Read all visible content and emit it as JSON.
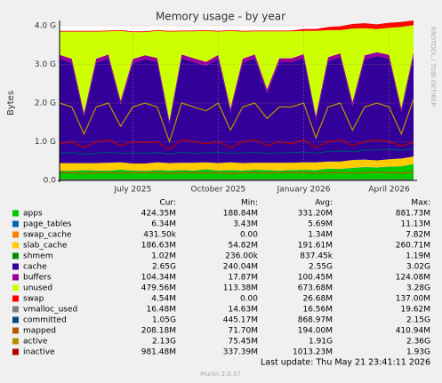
{
  "chart_data": {
    "type": "area",
    "title": "Memory usage - by year",
    "y_label": "Bytes",
    "side_text": "RRDTOOL / TOBI OETIKER",
    "footer": "Last update: Thu May 21 23:41:11 2026",
    "version": "Munin 2.0.57",
    "stats_header": [
      "Cur:",
      "Min:",
      "Avg:",
      "Max:"
    ],
    "categories": [
      null,
      null,
      null,
      null,
      null,
      null,
      "July 2025",
      null,
      null,
      null,
      null,
      null,
      null,
      "October 2025",
      null,
      null,
      null,
      null,
      null,
      null,
      "January 2026",
      null,
      null,
      null,
      null,
      null,
      null,
      "April 2026",
      null,
      null
    ],
    "ylim": [
      0,
      4000000000
    ],
    "yticks": [
      {
        "value": 0,
        "label": "0.0"
      },
      {
        "value": 1000000000,
        "label": "1.0 G"
      },
      {
        "value": 2000000000,
        "label": "2.0 G"
      },
      {
        "value": 3000000000,
        "label": "3.0 G"
      },
      {
        "value": 4000000000,
        "label": "4.0 G"
      }
    ],
    "grid": true,
    "series": [
      {
        "name": "apps",
        "color": "#00cc00",
        "stacked": true,
        "stats": [
          "424.35M",
          "188.84M",
          "331.20M",
          "881.73M"
        ],
        "values": [
          250000000.0,
          240000000.0,
          260000000.0,
          250000000.0,
          250000000.0,
          270000000.0,
          250000000.0,
          240000000.0,
          260000000.0,
          250000000.0,
          260000000.0,
          250000000.0,
          280000000.0,
          250000000.0,
          260000000.0,
          250000000.0,
          270000000.0,
          260000000.0,
          250000000.0,
          260000000.0,
          270000000.0,
          260000000.0,
          300000000.0,
          290000000.0,
          320000000.0,
          340000000.0,
          330000000.0,
          350000000.0,
          360000000.0,
          420000000.0
        ]
      },
      {
        "name": "page_tables",
        "color": "#0066b3",
        "stacked": true,
        "stats": [
          "6.34M",
          "3.43M",
          "5.69M",
          "11.13M"
        ],
        "values": [
          6000000.0,
          6000000.0,
          6000000.0,
          6000000.0,
          6000000.0,
          6000000.0,
          6000000.0,
          6000000.0,
          6000000.0,
          6000000.0,
          6000000.0,
          6000000.0,
          6000000.0,
          6000000.0,
          6000000.0,
          6000000.0,
          6000000.0,
          6000000.0,
          6000000.0,
          6000000.0,
          6000000.0,
          6000000.0,
          6000000.0,
          6000000.0,
          6000000.0,
          6000000.0,
          6000000.0,
          6000000.0,
          6000000.0,
          6000000.0
        ]
      },
      {
        "name": "swap_cache",
        "color": "#ff8000",
        "stacked": true,
        "stats": [
          "431.50k",
          "0.00",
          "1.34M",
          "7.82M"
        ],
        "values": [
          400000.0,
          400000.0,
          400000.0,
          400000.0,
          400000.0,
          400000.0,
          400000.0,
          400000.0,
          400000.0,
          400000.0,
          400000.0,
          400000.0,
          400000.0,
          400000.0,
          400000.0,
          400000.0,
          400000.0,
          400000.0,
          400000.0,
          400000.0,
          400000.0,
          400000.0,
          400000.0,
          400000.0,
          400000.0,
          400000.0,
          400000.0,
          400000.0,
          400000.0,
          400000.0
        ]
      },
      {
        "name": "slab_cache",
        "color": "#ffcc00",
        "stacked": true,
        "stats": [
          "186.63M",
          "54.82M",
          "191.61M",
          "260.71M"
        ],
        "values": [
          190000000.0,
          200000000.0,
          180000000.0,
          190000000.0,
          200000000.0,
          190000000.0,
          180000000.0,
          190000000.0,
          200000000.0,
          190000000.0,
          190000000.0,
          200000000.0,
          180000000.0,
          190000000.0,
          200000000.0,
          190000000.0,
          180000000.0,
          190000000.0,
          200000000.0,
          190000000.0,
          190000000.0,
          200000000.0,
          180000000.0,
          190000000.0,
          200000000.0,
          190000000.0,
          180000000.0,
          190000000.0,
          200000000.0,
          190000000.0
        ]
      },
      {
        "name": "shmem",
        "color": "#008f00",
        "stacked": true,
        "stats": [
          "1.02M",
          "236.00k",
          "837.45k",
          "1.19M"
        ],
        "values": [
          1000000.0,
          1000000.0,
          1000000.0,
          1000000.0,
          1000000.0,
          1000000.0,
          1000000.0,
          1000000.0,
          1000000.0,
          1000000.0,
          1000000.0,
          1000000.0,
          1000000.0,
          1000000.0,
          1000000.0,
          1000000.0,
          1000000.0,
          1000000.0,
          1000000.0,
          1000000.0,
          1000000.0,
          1000000.0,
          1000000.0,
          1000000.0,
          1000000.0,
          1000000.0,
          1000000.0,
          1000000.0,
          1000000.0,
          1000000.0
        ]
      },
      {
        "name": "cache",
        "color": "#330099",
        "stacked": true,
        "stats": [
          "2.65G",
          "240.04M",
          "2.55G",
          "3.02G"
        ],
        "values": [
          2700000000.0,
          2600000000.0,
          1200000000.0,
          2600000000.0,
          2700000000.0,
          1500000000.0,
          2600000000.0,
          2700000000.0,
          2600000000.0,
          1000000000.0,
          2700000000.0,
          2600000000.0,
          2500000000.0,
          2700000000.0,
          1300000000.0,
          2600000000.0,
          2700000000.0,
          1800000000.0,
          2600000000.0,
          2600000000.0,
          2700000000.0,
          1100000000.0,
          2600000000.0,
          2700000000.0,
          1400000000.0,
          2600000000.0,
          2700000000.0,
          2600000000.0,
          1200000000.0,
          2600000000.0
        ]
      },
      {
        "name": "buffers",
        "color": "#990099",
        "stacked": true,
        "stats": [
          "104.34M",
          "17.87M",
          "100.45M",
          "124.08M"
        ],
        "values": [
          100000000.0,
          100000000.0,
          100000000.0,
          100000000.0,
          100000000.0,
          100000000.0,
          100000000.0,
          100000000.0,
          100000000.0,
          100000000.0,
          100000000.0,
          100000000.0,
          100000000.0,
          100000000.0,
          100000000.0,
          100000000.0,
          100000000.0,
          100000000.0,
          100000000.0,
          100000000.0,
          100000000.0,
          100000000.0,
          100000000.0,
          100000000.0,
          100000000.0,
          100000000.0,
          100000000.0,
          100000000.0,
          100000000.0,
          100000000.0
        ]
      },
      {
        "name": "unused",
        "color": "#ccff00",
        "stacked": true,
        "stats": [
          "479.56M",
          "113.38M",
          "673.68M",
          "3.28G"
        ],
        "values": [
          600000000.0,
          700000000.0,
          2100000000.0,
          700000000.0,
          600000000.0,
          1800000000.0,
          700000000.0,
          600000000.0,
          700000000.0,
          2300000000.0,
          600000000.0,
          700000000.0,
          800000000.0,
          600000000.0,
          2000000000.0,
          700000000.0,
          600000000.0,
          1500000000.0,
          700000000.0,
          700000000.0,
          600000000.0,
          2200000000.0,
          700000000.0,
          600000000.0,
          1900000000.0,
          700000000.0,
          600000000.0,
          700000000.0,
          2100000000.0,
          700000000.0
        ]
      },
      {
        "name": "swap",
        "color": "#ff0000",
        "stacked": true,
        "stats": [
          "4.54M",
          "0.00",
          "26.68M",
          "137.00M"
        ],
        "values": [
          20000000.0,
          20000000.0,
          20000000.0,
          20000000.0,
          20000000.0,
          20000000.0,
          20000000.0,
          20000000.0,
          20000000.0,
          20000000.0,
          20000000.0,
          20000000.0,
          20000000.0,
          20000000.0,
          20000000.0,
          20000000.0,
          20000000.0,
          20000000.0,
          20000000.0,
          20000000.0,
          50000000.0,
          50000000.0,
          80000000.0,
          100000000.0,
          120000000.0,
          130000000.0,
          120000000.0,
          130000000.0,
          130000000.0,
          120000000.0
        ]
      },
      {
        "name": "vmalloc_used",
        "color": "#808080",
        "stacked": false,
        "stats": [
          "16.48M",
          "14.63M",
          "16.56M",
          "19.62M"
        ],
        "values": [
          17000000.0,
          17000000.0,
          17000000.0,
          17000000.0,
          17000000.0,
          17000000.0,
          17000000.0,
          17000000.0,
          17000000.0,
          17000000.0,
          17000000.0,
          17000000.0,
          17000000.0,
          17000000.0,
          17000000.0,
          17000000.0,
          17000000.0,
          17000000.0,
          17000000.0,
          17000000.0,
          17000000.0,
          17000000.0,
          17000000.0,
          17000000.0,
          17000000.0,
          17000000.0,
          17000000.0,
          17000000.0,
          17000000.0,
          17000000.0
        ]
      },
      {
        "name": "committed",
        "color": "#00487d",
        "stacked": false,
        "stats": [
          "1.05G",
          "445.17M",
          "868.97M",
          "2.15G"
        ],
        "values": [
          700000000.0,
          720000000.0,
          680000000.0,
          700000000.0,
          730000000.0,
          700000000.0,
          710000000.0,
          700000000.0,
          720000000.0,
          680000000.0,
          730000000.0,
          700000000.0,
          710000000.0,
          720000000.0,
          700000000.0,
          710000000.0,
          730000000.0,
          700000000.0,
          710000000.0,
          720000000.0,
          730000000.0,
          700000000.0,
          750000000.0,
          760000000.0,
          740000000.0,
          780000000.0,
          790000000.0,
          800000000.0,
          780000000.0,
          820000000.0
        ]
      },
      {
        "name": "mapped",
        "color": "#b35a00",
        "stacked": false,
        "stats": [
          "208.18M",
          "71.70M",
          "194.00M",
          "410.94M"
        ],
        "values": [
          200000000.0,
          200000000.0,
          180000000.0,
          200000000.0,
          200000000.0,
          190000000.0,
          200000000.0,
          200000000.0,
          200000000.0,
          180000000.0,
          200000000.0,
          200000000.0,
          190000000.0,
          200000000.0,
          180000000.0,
          200000000.0,
          200000000.0,
          190000000.0,
          200000000.0,
          200000000.0,
          200000000.0,
          180000000.0,
          200000000.0,
          200000000.0,
          190000000.0,
          200000000.0,
          210000000.0,
          200000000.0,
          190000000.0,
          210000000.0
        ]
      },
      {
        "name": "active",
        "color": "#b38f00",
        "stacked": false,
        "stats": [
          "2.13G",
          "75.45M",
          "1.91G",
          "2.36G"
        ],
        "values": [
          2000000000.0,
          1900000000.0,
          1200000000.0,
          1900000000.0,
          2000000000.0,
          1400000000.0,
          1900000000.0,
          2000000000.0,
          1900000000.0,
          1000000000.0,
          2000000000.0,
          1900000000.0,
          1800000000.0,
          2000000000.0,
          1300000000.0,
          1900000000.0,
          2000000000.0,
          1600000000.0,
          1900000000.0,
          1900000000.0,
          2000000000.0,
          1100000000.0,
          1900000000.0,
          2000000000.0,
          1300000000.0,
          1900000000.0,
          2000000000.0,
          1900000000.0,
          1200000000.0,
          2100000000.0
        ]
      },
      {
        "name": "inactive",
        "color": "#b30000",
        "stacked": false,
        "stats": [
          "981.48M",
          "337.39M",
          "1013.23M",
          "1.93G"
        ],
        "values": [
          950000000.0,
          1000000000.0,
          850000000.0,
          1000000000.0,
          1050000000.0,
          900000000.0,
          1000000000.0,
          980000000.0,
          1000000000.0,
          800000000.0,
          1050000000.0,
          1000000000.0,
          950000000.0,
          1000000000.0,
          850000000.0,
          1000000000.0,
          1050000000.0,
          900000000.0,
          1000000000.0,
          950000000.0,
          1050000000.0,
          850000000.0,
          1000000000.0,
          1050000000.0,
          900000000.0,
          1000000000.0,
          1050000000.0,
          1000000000.0,
          900000000.0,
          980000000.0
        ]
      }
    ]
  }
}
